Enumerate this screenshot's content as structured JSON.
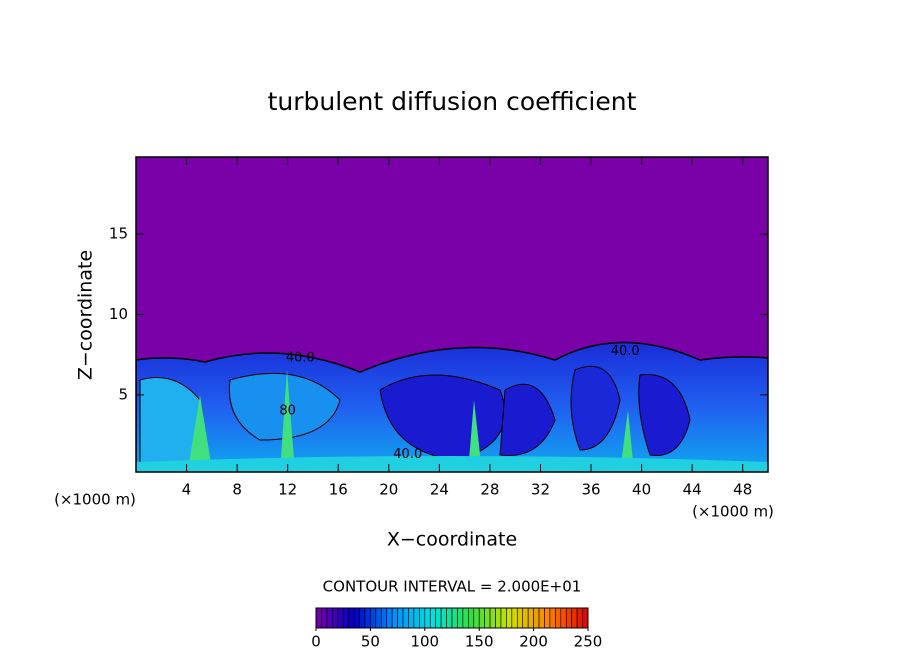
{
  "chart_data": {
    "type": "contour",
    "title": "turbulent diffusion coefficient",
    "xlabel": "X−coordinate",
    "ylabel": "Z−coordinate",
    "x_unit_label": "(×1000 m)",
    "x_unit_label_right": "(×1000 m)",
    "xlim": [
      0,
      50
    ],
    "ylim": [
      0.2,
      19.8
    ],
    "xticks": [
      4,
      8,
      12,
      16,
      20,
      24,
      28,
      32,
      36,
      40,
      44,
      48
    ],
    "yticks": [
      5,
      10,
      15
    ],
    "background_color": "#7a00a8",
    "contour_labels": [
      {
        "text": "40.0",
        "x": 13,
        "z": 7.3
      },
      {
        "text": "40.0",
        "x": 21.5,
        "z": 1.3
      },
      {
        "text": "40.0",
        "x": 38.7,
        "z": 7.7
      },
      {
        "text": "80",
        "x": 12,
        "z": 4
      }
    ],
    "contour_interval_text": "CONTOUR INTERVAL = 2.000E+01",
    "colorbar": {
      "lim": [
        0,
        250
      ],
      "ticks": [
        0,
        50,
        100,
        150,
        200,
        250
      ],
      "colormap": [
        "#7a00a8",
        "#0000c8",
        "#0090ff",
        "#00e0e0",
        "#30e040",
        "#d0e000",
        "#ff8000",
        "#e00000"
      ]
    }
  }
}
